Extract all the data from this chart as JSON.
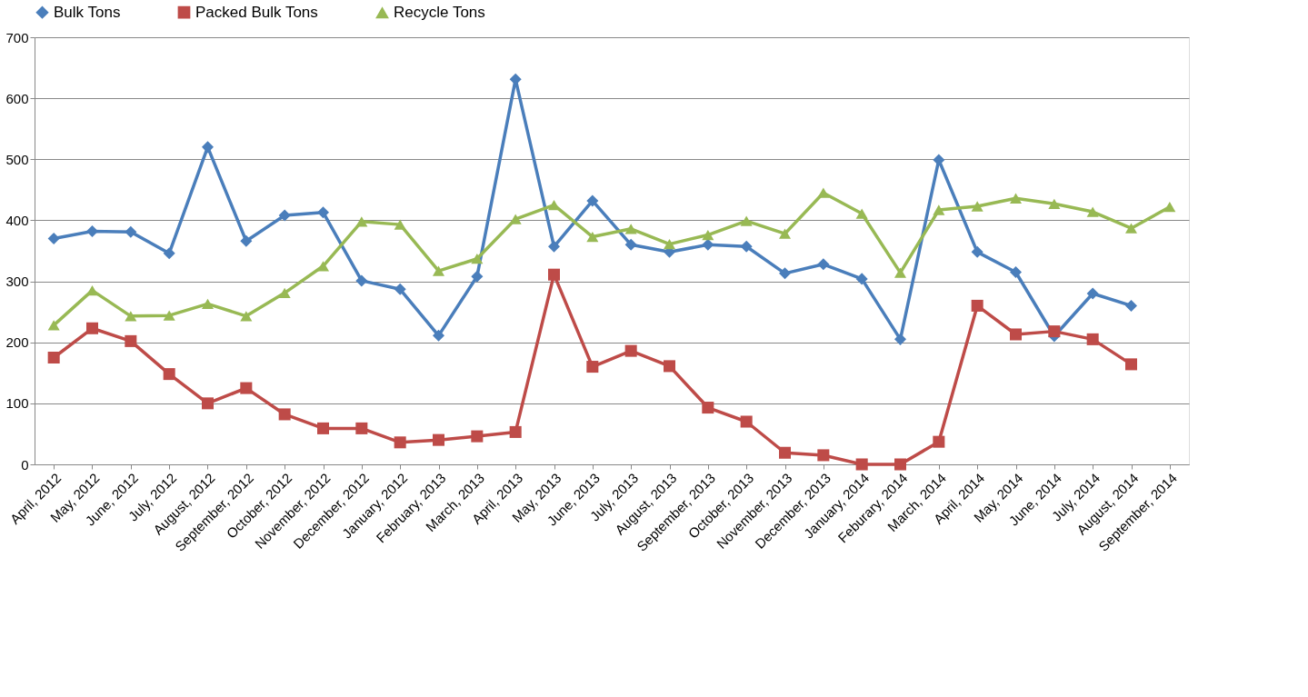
{
  "chart_data": {
    "type": "line",
    "categories": [
      "April, 2012",
      "May, 2012",
      "June, 2012",
      "July, 2012",
      "August, 2012",
      "September, 2012",
      "October, 2012",
      "November, 2012",
      "December, 2012",
      "January, 2012",
      "February, 2013",
      "March, 2013",
      "April, 2013",
      "May, 2013",
      "June, 2013",
      "July, 2013",
      "August, 2013",
      "September, 2013",
      "October, 2013",
      "November, 2013",
      "December, 2013",
      "January, 2014",
      "Feburary, 2014",
      "March, 2014",
      "April, 2014",
      "May, 2014",
      "June, 2014",
      "July, 2014",
      "August, 2014",
      "September, 2014"
    ],
    "series": [
      {
        "name": "Bulk Tons",
        "color": "#4a7ebb",
        "marker": "diamond",
        "values": [
          370,
          382,
          381,
          346,
          520,
          366,
          408,
          413,
          301,
          287,
          211,
          308,
          631,
          357,
          432,
          360,
          348,
          360,
          357,
          313,
          328,
          304,
          205,
          499,
          348,
          315,
          210,
          280,
          260,
          null
        ]
      },
      {
        "name": "Packed Bulk Tons",
        "color": "#be4b48",
        "marker": "square",
        "values": [
          175,
          223,
          202,
          148,
          100,
          125,
          82,
          59,
          59,
          36,
          40,
          46,
          53,
          311,
          160,
          186,
          161,
          93,
          70,
          19,
          15,
          0,
          0,
          37,
          260,
          213,
          218,
          205,
          164,
          null
        ]
      },
      {
        "name": "Recycle Tons",
        "color": "#98b954",
        "marker": "triangle",
        "values": [
          228,
          285,
          243,
          244,
          263,
          243,
          281,
          325,
          398,
          393,
          317,
          337,
          402,
          425,
          373,
          386,
          361,
          376,
          399,
          378,
          445,
          411,
          314,
          417,
          423,
          436,
          427,
          414,
          387,
          422
        ]
      }
    ],
    "ylim": [
      0,
      700
    ],
    "yticks": [
      0,
      100,
      200,
      300,
      400,
      500,
      600,
      700
    ],
    "grid": "y",
    "legend": "top",
    "line_style": "solid"
  }
}
